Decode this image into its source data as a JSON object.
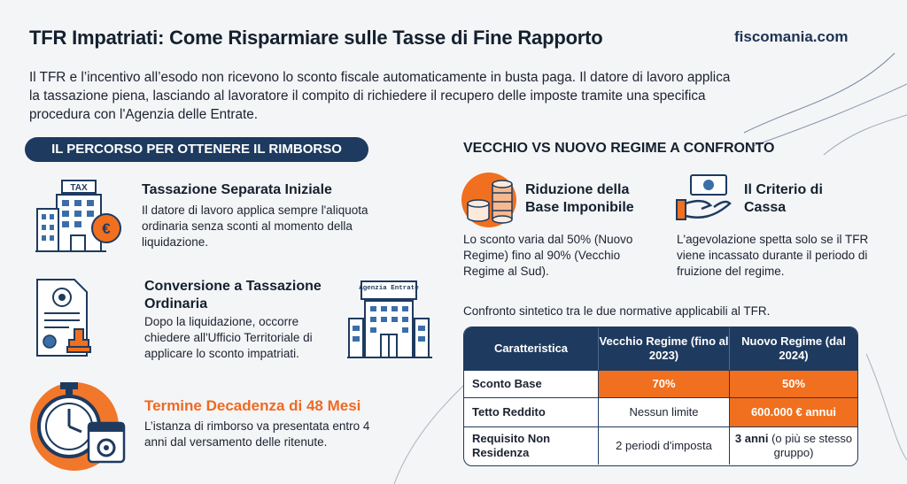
{
  "header": {
    "title": "TFR Impatriati: Come Risparmiare sulle Tasse di Fine Rapporto",
    "brand": "fiscomania.com"
  },
  "intro": "Il TFR e l’incentivo all’esodo non ricevono lo sconto fiscale automaticamente in busta paga. Il datore di lavoro applica la tassazione piena, lasciando al lavoratore il compito di richiedere il recupero delle imposte tramite una specifica procedura con l'Agenzia delle Entrate.",
  "left_section": {
    "heading": "IL PERCORSO PER OTTENERE IL RIMBORSO",
    "steps": [
      {
        "title": "Tassazione Separata Iniziale",
        "text": "Il datore di lavoro applica sempre l'aliquota ordinaria senza sconti al momento della liquidazione."
      },
      {
        "title": "Conversione a Tassazione Ordinaria",
        "text": "Dopo la liquidazione, occorre chiedere all'Ufficio Territoriale di applicare lo sconto impatriati."
      },
      {
        "title": "Termine Decadenza di 48 Mesi",
        "text": "L’istanza di rimborso va presentata entro 4 anni dal versamento delle ritenute."
      }
    ],
    "icon_labels": {
      "tax": "TAX",
      "euro": "€",
      "agenzia": "Agenzia Entrate"
    }
  },
  "right_section": {
    "heading": "VECCHIO VS NUOVO REGIME A CONFRONTO",
    "features": [
      {
        "title": "Riduzione della Base Imponibile",
        "text": "Lo sconto varia dal 50% (Nuovo Regime) fino al 90% (Vecchio Regime al Sud)."
      },
      {
        "title": "Il Criterio di Cassa",
        "text": "L'agevolazione spetta solo se il TFR viene incassato durante il periodo di fruizione del regime."
      }
    ],
    "caption": "Confronto sintetico tra le due normative applicabili al TFR.",
    "table": {
      "headers": [
        "Caratteristica",
        "Vecchio Regime (fino al 2023)",
        "Nuovo Regime (dal 2024)"
      ],
      "rows": [
        {
          "label": "Sconto Base",
          "old": "70%",
          "new": "50%"
        },
        {
          "label": "Tetto Reddito",
          "old": "Nessun limite",
          "new": "600.000 € annui"
        },
        {
          "label": "Requisito Non Residenza",
          "old": "2 periodi d'imposta",
          "new_bold": "3 anni",
          "new_rest": " (o più se stesso gruppo)"
        }
      ]
    }
  },
  "colors": {
    "navy": "#1e3a5f",
    "orange": "#f0701f",
    "background": "#f4f5f7"
  }
}
